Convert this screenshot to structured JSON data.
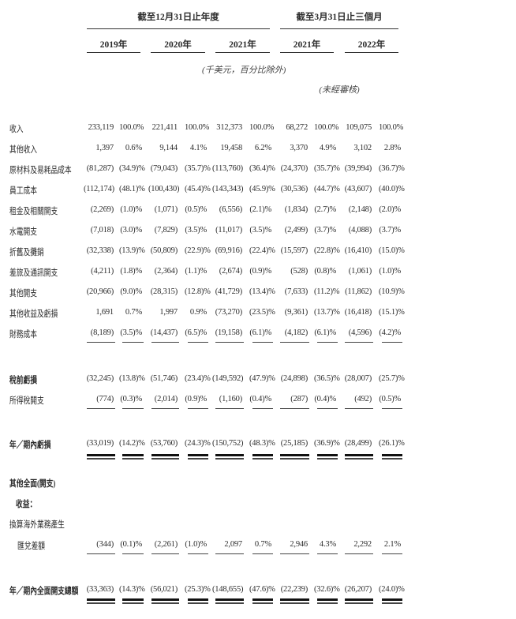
{
  "header": {
    "group_annual": "截至12月31日止年度",
    "group_quarter": "截至3月31日止三個月",
    "years": [
      "2019年",
      "2020年",
      "2021年",
      "2021年",
      "2022年"
    ],
    "unit_note": "(千美元，百分比除外)",
    "unaudited_note": "(未經審核)"
  },
  "rows": [
    {
      "label": "收入",
      "values": [
        "233,119",
        "100.0%",
        "221,411",
        "100.0%",
        "312,373",
        "100.0%",
        "68,272",
        "100.0%",
        "109,075",
        "100.0%"
      ]
    },
    {
      "label": "其他收入",
      "values": [
        "1,397",
        "0.6%",
        "9,144",
        "4.1%",
        "19,458",
        "6.2%",
        "3,370",
        "4.9%",
        "3,102",
        "2.8%"
      ]
    },
    {
      "label": "原材料及易耗品成本",
      "values": [
        "(81,287)",
        "(34.9)%",
        "(79,043)",
        "(35.7)%",
        "(113,760)",
        "(36.4)%",
        "(24,370)",
        "(35.7)%",
        "(39,994)",
        "(36.7)%"
      ]
    },
    {
      "label": "員工成本",
      "values": [
        "(112,174)",
        "(48.1)%",
        "(100,430)",
        "(45.4)%",
        "(143,343)",
        "(45.9)%",
        "(30,536)",
        "(44.7)%",
        "(43,607)",
        "(40.0)%"
      ]
    },
    {
      "label": "租金及相關開支",
      "values": [
        "(2,269)",
        "(1.0)%",
        "(1,071)",
        "(0.5)%",
        "(6,556)",
        "(2.1)%",
        "(1,834)",
        "(2.7)%",
        "(2,148)",
        "(2.0)%"
      ]
    },
    {
      "label": "水電開支",
      "values": [
        "(7,018)",
        "(3.0)%",
        "(7,829)",
        "(3.5)%",
        "(11,017)",
        "(3.5)%",
        "(2,499)",
        "(3.7)%",
        "(4,088)",
        "(3.7)%"
      ]
    },
    {
      "label": "折舊及攤銷",
      "values": [
        "(32,338)",
        "(13.9)%",
        "(50,809)",
        "(22.9)%",
        "(69,916)",
        "(22.4)%",
        "(15,597)",
        "(22.8)%",
        "(16,410)",
        "(15.0)%"
      ]
    },
    {
      "label": "差旅及通訊開支",
      "values": [
        "(4,211)",
        "(1.8)%",
        "(2,364)",
        "(1.1)%",
        "(2,674)",
        "(0.9)%",
        "(528)",
        "(0.8)%",
        "(1,061)",
        "(1.0)%"
      ]
    },
    {
      "label": "其他開支",
      "values": [
        "(20,966)",
        "(9.0)%",
        "(28,315)",
        "(12.8)%",
        "(41,729)",
        "(13.4)%",
        "(7,633)",
        "(11.2)%",
        "(11,862)",
        "(10.9)%"
      ]
    },
    {
      "label": "其他收益及虧損",
      "values": [
        "1,691",
        "0.7%",
        "1,997",
        "0.9%",
        "(73,270)",
        "(23.5)%",
        "(9,361)",
        "(13.7)%",
        "(16,418)",
        "(15.1)%"
      ]
    },
    {
      "label": "財務成本",
      "values": [
        "(8,189)",
        "(3.5)%",
        "(14,437)",
        "(6.5)%",
        "(19,158)",
        "(6.1)%",
        "(4,182)",
        "(6.1)%",
        "(4,596)",
        "(4.2)%"
      ]
    },
    {
      "label": "稅前虧損",
      "values": [
        "(32,245)",
        "(13.8)%",
        "(51,746)",
        "(23.4)%",
        "(149,592)",
        "(47.9)%",
        "(24,898)",
        "(36.5)%",
        "(28,007)",
        "(25.7)%"
      ]
    },
    {
      "label": "所得稅開支",
      "values": [
        "(774)",
        "(0.3)%",
        "(2,014)",
        "(0.9)%",
        "(1,160)",
        "(0.4)%",
        "(287)",
        "(0.4)%",
        "(492)",
        "(0.5)%"
      ]
    },
    {
      "label": "年／期內虧損",
      "values": [
        "(33,019)",
        "(14.2)%",
        "(53,760)",
        "(24.3)%",
        "(150,752)",
        "(48.3)%",
        "(25,185)",
        "(36.9)%",
        "(28,499)",
        "(26.1)%"
      ]
    },
    {
      "label": "其他全面(開支)",
      "values": []
    },
    {
      "label": "收益：",
      "values": []
    },
    {
      "label": "換算海外業務產生",
      "values": []
    },
    {
      "label": "匯兌差額",
      "values": [
        "(344)",
        "(0.1)%",
        "(2,261)",
        "(1.0)%",
        "2,097",
        "0.7%",
        "2,946",
        "4.3%",
        "2,292",
        "2.1%"
      ]
    },
    {
      "label": "年／期內全面開支總額",
      "values": [
        "(33,363)",
        "(14.3)%",
        "(56,021)",
        "(25.3)%",
        "(148,655)",
        "(47.6)%",
        "(22,239)",
        "(32.6)%",
        "(26,207)",
        "(24.0)%"
      ]
    }
  ]
}
